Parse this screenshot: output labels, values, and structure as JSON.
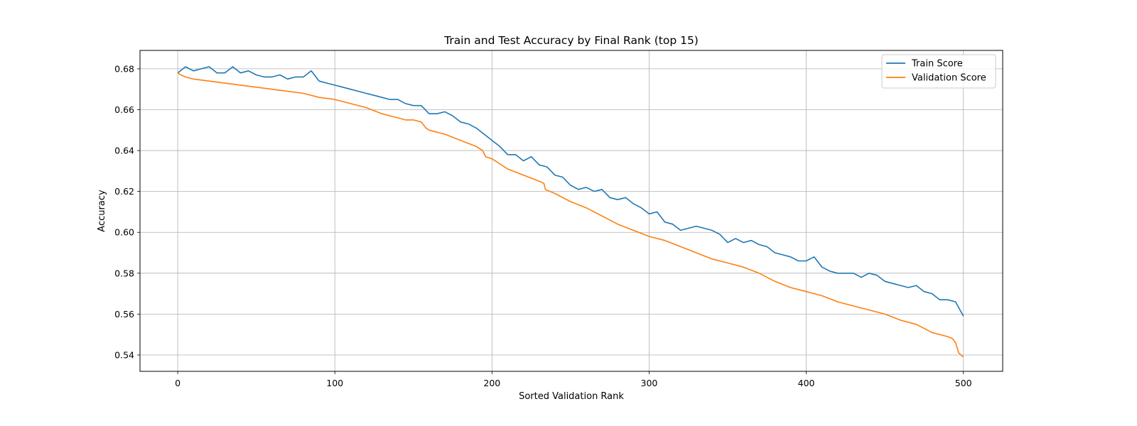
{
  "chart_data": {
    "type": "line",
    "title": "Train and Test Accuracy by Final Rank (top 15)",
    "xlabel": "Sorted Validation Rank",
    "ylabel": "Accuracy",
    "xlim": [
      -24,
      525
    ],
    "ylim": [
      0.532,
      0.689
    ],
    "xticks": [
      0,
      100,
      200,
      300,
      400,
      500
    ],
    "yticks": [
      0.54,
      0.56,
      0.58,
      0.6,
      0.62,
      0.64,
      0.66,
      0.68
    ],
    "ytick_labels": [
      "0.54",
      "0.56",
      "0.58",
      "0.60",
      "0.62",
      "0.64",
      "0.66",
      "0.68"
    ],
    "grid": true,
    "legend_position": "top-right",
    "series": [
      {
        "name": "Train Score",
        "color": "#1f77b4",
        "x": [
          0,
          5,
          10,
          15,
          20,
          25,
          30,
          35,
          40,
          45,
          50,
          55,
          60,
          65,
          70,
          75,
          80,
          85,
          90,
          95,
          100,
          105,
          110,
          115,
          120,
          125,
          130,
          135,
          140,
          145,
          150,
          155,
          160,
          165,
          170,
          175,
          180,
          185,
          190,
          195,
          200,
          205,
          210,
          215,
          220,
          225,
          230,
          235,
          240,
          245,
          250,
          255,
          260,
          265,
          270,
          275,
          280,
          285,
          290,
          295,
          300,
          305,
          310,
          315,
          320,
          325,
          330,
          335,
          340,
          345,
          350,
          355,
          360,
          365,
          370,
          375,
          380,
          385,
          390,
          395,
          400,
          405,
          410,
          415,
          420,
          425,
          430,
          435,
          440,
          445,
          450,
          455,
          460,
          465,
          470,
          475,
          480,
          485,
          490,
          495,
          500
        ],
        "values": [
          0.678,
          0.681,
          0.679,
          0.68,
          0.681,
          0.678,
          0.678,
          0.681,
          0.678,
          0.679,
          0.677,
          0.676,
          0.676,
          0.677,
          0.675,
          0.676,
          0.676,
          0.679,
          0.674,
          0.673,
          0.672,
          0.671,
          0.67,
          0.669,
          0.668,
          0.667,
          0.666,
          0.665,
          0.665,
          0.663,
          0.662,
          0.662,
          0.658,
          0.658,
          0.659,
          0.657,
          0.654,
          0.653,
          0.651,
          0.648,
          0.645,
          0.642,
          0.638,
          0.638,
          0.635,
          0.637,
          0.633,
          0.632,
          0.628,
          0.627,
          0.623,
          0.621,
          0.622,
          0.62,
          0.621,
          0.617,
          0.616,
          0.617,
          0.614,
          0.612,
          0.609,
          0.61,
          0.605,
          0.604,
          0.601,
          0.602,
          0.603,
          0.602,
          0.601,
          0.599,
          0.595,
          0.597,
          0.595,
          0.596,
          0.594,
          0.593,
          0.59,
          0.589,
          0.588,
          0.586,
          0.586,
          0.588,
          0.583,
          0.581,
          0.58,
          0.58,
          0.58,
          0.578,
          0.58,
          0.579,
          0.576,
          0.575,
          0.574,
          0.573,
          0.574,
          0.571,
          0.57,
          0.567,
          0.567,
          0.566,
          0.559
        ]
      },
      {
        "name": "Validation Score",
        "color": "#ff7f0e",
        "x": [
          0,
          2,
          5,
          10,
          20,
          30,
          40,
          50,
          60,
          70,
          80,
          90,
          100,
          110,
          120,
          130,
          135,
          140,
          145,
          150,
          155,
          158,
          160,
          170,
          180,
          190,
          194,
          196,
          200,
          210,
          220,
          230,
          233,
          234,
          240,
          250,
          260,
          270,
          280,
          290,
          300,
          310,
          320,
          330,
          340,
          350,
          360,
          370,
          380,
          390,
          400,
          410,
          420,
          430,
          440,
          450,
          460,
          470,
          480,
          490,
          493,
          495,
          497,
          500
        ],
        "values": [
          0.678,
          0.677,
          0.676,
          0.675,
          0.674,
          0.673,
          0.672,
          0.671,
          0.67,
          0.669,
          0.668,
          0.666,
          0.665,
          0.663,
          0.661,
          0.658,
          0.657,
          0.656,
          0.655,
          0.655,
          0.654,
          0.651,
          0.65,
          0.648,
          0.645,
          0.642,
          0.64,
          0.637,
          0.636,
          0.631,
          0.628,
          0.625,
          0.624,
          0.621,
          0.619,
          0.615,
          0.612,
          0.608,
          0.604,
          0.601,
          0.598,
          0.596,
          0.593,
          0.59,
          0.587,
          0.585,
          0.583,
          0.58,
          0.576,
          0.573,
          0.571,
          0.569,
          0.566,
          0.564,
          0.562,
          0.56,
          0.557,
          0.555,
          0.551,
          0.549,
          0.548,
          0.546,
          0.541,
          0.539
        ]
      }
    ]
  }
}
